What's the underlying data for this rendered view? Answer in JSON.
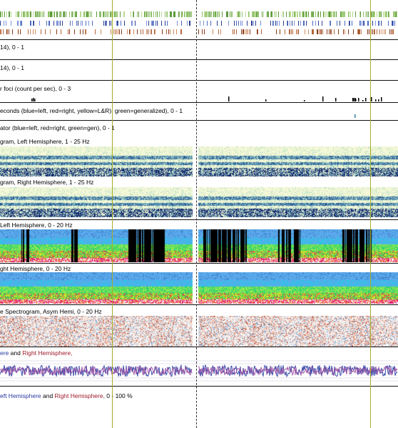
{
  "labels": {
    "p1": "14), 0 - 1",
    "p2": "14), 0 - 1",
    "p3": "r foci (count per sec), 0 - 3",
    "p4": "econds (blue=left, red=right, yellow=L&R), green=generalized),  0 - 1",
    "p5": "ator (blue=left, red=right, green=gen),  0 - 1",
    "p6": "gram, Left Hemisphere, 1 - 25 Hz",
    "p7": "gram, Right Hemisphere, 1 - 25 Hz",
    "p8": "Left Hemisphere, 0 - 20 Hz",
    "p9": "ght Hemisphere, 0 - 20 Hz",
    "p10": "e Spectrogram, Asym Hemi, 0 - 20 Hz",
    "p11_left": "ere",
    "p11_and": " and ",
    "p11_right": "Right Hemisphere,",
    "p12_left": "eft Hemisphere",
    "p12_and": " and ",
    "p12_right": "Right Hemisphere,",
    "p12_tail": "  0 - 100 %"
  },
  "colors": {
    "marker": "#a5ad2a",
    "left_hemi": "#2a3aa0",
    "right_hemi": "#a01a2a",
    "trace_purple": "#a05aa8",
    "trace_blue": "#3a4aa8"
  }
}
